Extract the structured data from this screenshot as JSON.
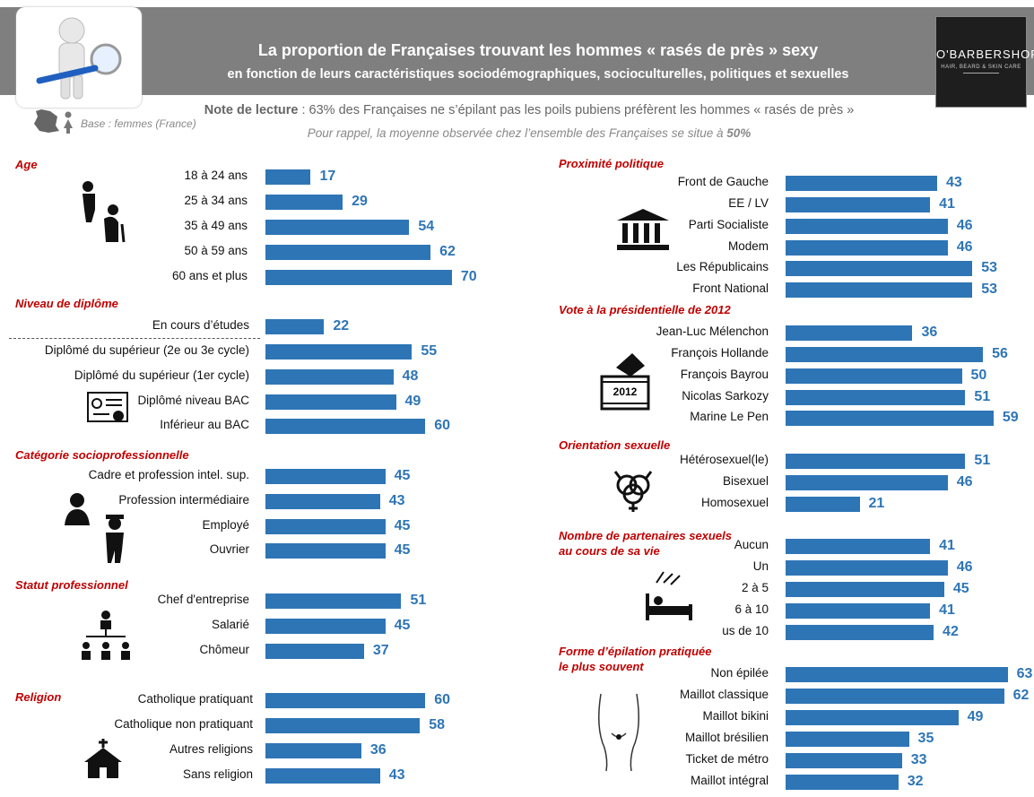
{
  "header": {
    "title": "La proportion de Françaises trouvant les hommes « rasés de près » sexy",
    "subtitle": "en fonction de leurs caractéristiques sociodémographiques, socioculturelles, politiques et sexuelles",
    "brand_name": "O'BARBERSHOP",
    "brand_tag": "HAIR, BEARD & SKIN CARE"
  },
  "notes": {
    "reading_label": "Note de lecture",
    "reading_text": " : 63% des Françaises ne s’épilant pas les poils pubiens préfèrent les hommes « rasés de près »",
    "base": "Base : femmes (France)",
    "reminder_a": "Pour rappel, la moyenne observée chez l’ensemble des Françaises se situe à ",
    "reminder_b": "50%"
  },
  "colors": {
    "bar": "#2e75b6",
    "section": "#c00000",
    "header": "#7f7f7f"
  },
  "chart_data": [
    {
      "type": "bar",
      "title": "Age",
      "categories": [
        "18 à 24 ans",
        "25 à 34 ans",
        "35 à 49 ans",
        "50 à 59 ans",
        "60 ans et plus"
      ],
      "values": [
        17,
        29,
        54,
        62,
        70
      ]
    },
    {
      "type": "bar",
      "title": "Niveau de diplôme",
      "categories": [
        "En cours d’études",
        "Diplômé du supérieur (2e ou 3e cycle)",
        "Diplômé du supérieur (1er cycle)",
        "Diplômé niveau BAC",
        "Inférieur au BAC"
      ],
      "values": [
        22,
        55,
        48,
        49,
        60
      ]
    },
    {
      "type": "bar",
      "title": "Catégorie socioprofessionnelle",
      "categories": [
        "Cadre et profession intel. sup.",
        "Profession intermédiaire",
        "Employé",
        "Ouvrier"
      ],
      "values": [
        45,
        43,
        45,
        45
      ]
    },
    {
      "type": "bar",
      "title": "Statut professionnel",
      "categories": [
        "Chef d'entreprise",
        "Salarié",
        "Chômeur"
      ],
      "values": [
        51,
        45,
        37
      ]
    },
    {
      "type": "bar",
      "title": "Religion",
      "categories": [
        "Catholique pratiquant",
        "Catholique non pratiquant",
        "Autres religions",
        "Sans  religion"
      ],
      "values": [
        60,
        58,
        36,
        43
      ]
    },
    {
      "type": "bar",
      "title": "Proximité politique",
      "categories": [
        "Front de Gauche",
        "EE / LV",
        "Parti Socialiste",
        "Modem",
        "Les Républicains",
        "Front National"
      ],
      "values": [
        43,
        41,
        46,
        46,
        53,
        53
      ]
    },
    {
      "type": "bar",
      "title": "Vote à la présidentielle de 2012",
      "categories": [
        "Jean-Luc Mélenchon",
        "François Hollande",
        "François Bayrou",
        "Nicolas Sarkozy",
        "Marine Le Pen"
      ],
      "values": [
        36,
        56,
        50,
        51,
        59
      ]
    },
    {
      "type": "bar",
      "title": "Orientation sexuelle",
      "categories": [
        "Hétérosexuel(le)",
        "Bisexuel",
        "Homosexuel"
      ],
      "values": [
        51,
        46,
        21
      ]
    },
    {
      "type": "bar",
      "title": "Nombre de partenaires sexuels\nau cours de sa vie",
      "categories": [
        "Aucun",
        "Un",
        "2 à 5",
        "6 à 10",
        "us de 10"
      ],
      "values": [
        41,
        46,
        45,
        41,
        42
      ]
    },
    {
      "type": "bar",
      "title": "Forme d’épilation pratiquée\nle plus souvent",
      "categories": [
        "Non épilée",
        "Maillot classique",
        "Maillot bikini",
        "Maillot brésilien",
        "Ticket de métro",
        "Maillot intégral"
      ],
      "values": [
        63,
        62,
        49,
        35,
        33,
        32
      ]
    }
  ],
  "icon_names": [
    "3d-man-magnifier-icon",
    "france-map-icon",
    "woman-icon",
    "age-people-icon",
    "diploma-icon",
    "workers-icon",
    "hierarchy-icon",
    "church-icon",
    "parliament-icon",
    "ballot-box-icon",
    "gender-symbols-icon",
    "bed-icon",
    "body-icon"
  ],
  "ballot_year": "2012"
}
